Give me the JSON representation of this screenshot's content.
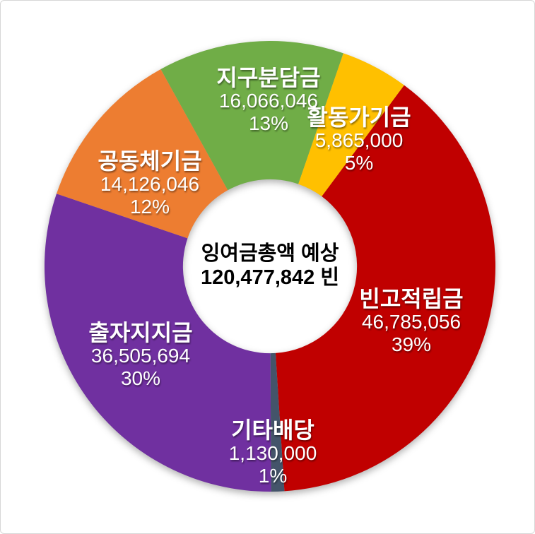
{
  "chart_data": {
    "type": "pie",
    "subtype": "doughnut",
    "title": "",
    "legend": "none",
    "grid": "off",
    "total": 120477842,
    "rotation_deg": -29,
    "inner_radius_ratio": 0.386,
    "categories": [
      "지구분담금",
      "활동가기금",
      "빈고적립금",
      "기타배당",
      "출자지지금",
      "공동체기금"
    ],
    "values": [
      16066046,
      5865000,
      46785056,
      1130000,
      36505694,
      14126046
    ],
    "colors": [
      "#70AD47",
      "#FFC000",
      "#C00000",
      "#44546A",
      "#7030A0",
      "#ED7D31"
    ],
    "center_label": {
      "line1": "잉여금총액 예상",
      "line2": "120,477,842 빈"
    },
    "slices": [
      {
        "name": "지구분담금",
        "value": 16066046,
        "value_text": "16,066,046",
        "percent_text": "13%",
        "color": "#70AD47"
      },
      {
        "name": "활동가기금",
        "value": 5865000,
        "value_text": "5,865,000",
        "percent_text": "5%",
        "color": "#FFC000"
      },
      {
        "name": "빈고적립금",
        "value": 46785056,
        "value_text": "46,785,056",
        "percent_text": "39%",
        "color": "#C00000"
      },
      {
        "name": "기타배당",
        "value": 1130000,
        "value_text": "1,130,000",
        "percent_text": "1%",
        "color": "#44546A"
      },
      {
        "name": "출자지지금",
        "value": 36505694,
        "value_text": "36,505,694",
        "percent_text": "30%",
        "color": "#7030A0"
      },
      {
        "name": "공동체기금",
        "value": 14126046,
        "value_text": "14,126,046",
        "percent_text": "12%",
        "color": "#ED7D31"
      }
    ]
  }
}
